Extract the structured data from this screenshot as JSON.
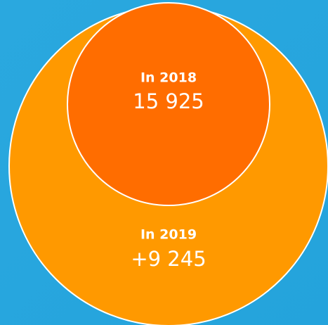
{
  "circles": [
    {
      "label": "In 2018",
      "value": "15 925"
    },
    {
      "label": "In 2019",
      "value": "+9 245"
    }
  ]
}
